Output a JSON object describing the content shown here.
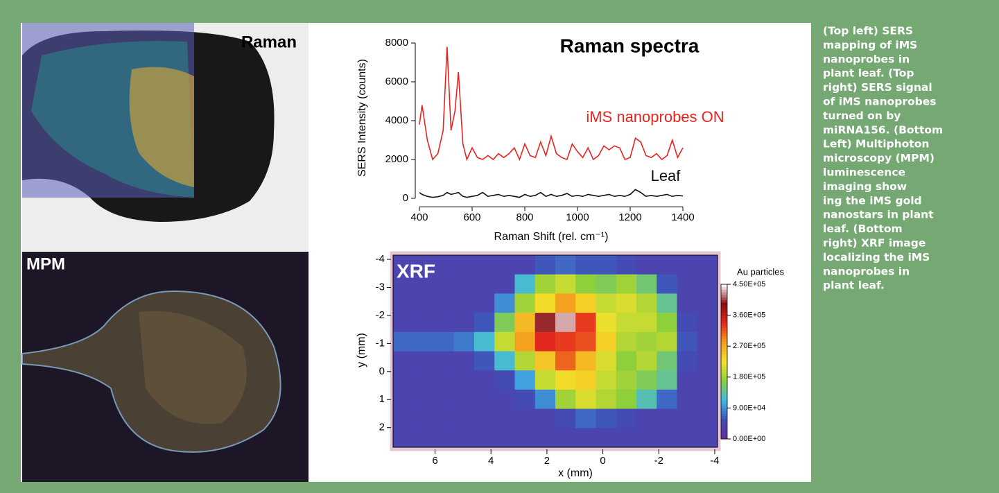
{
  "panels": {
    "raman_map_label": "Raman",
    "mpm_label": "MPM"
  },
  "caption": [
    "(Top left) SERS",
    "mapping of iMS",
    "nanoprobes in",
    "plant leaf. (Top",
    "right) SERS signal",
    "of iMS nanoprobes",
    "turned on by",
    "miRNA156. (Bottom",
    "Left) Multiphoton",
    "microscopy (MPM)",
    "luminescence",
    "imaging show",
    "ing the iMS gold",
    "nanostars in plant",
    "leaf. (Bottom",
    "right) XRF image",
    "localizing the iMS",
    "nanoprobes in",
    "plant leaf."
  ],
  "chart_data": [
    {
      "type": "line",
      "title": "Raman spectra",
      "x_label": "Raman Shift (rel. cm⁻¹)",
      "y_label": "SERS Intensity (counts)",
      "x": [
        400,
        410,
        430,
        450,
        470,
        490,
        505,
        520,
        535,
        548,
        565,
        580,
        600,
        620,
        640,
        660,
        680,
        700,
        720,
        740,
        760,
        780,
        800,
        820,
        840,
        860,
        880,
        900,
        920,
        940,
        960,
        980,
        1000,
        1020,
        1040,
        1060,
        1080,
        1100,
        1120,
        1140,
        1160,
        1180,
        1200,
        1220,
        1240,
        1260,
        1280,
        1300,
        1320,
        1340,
        1360,
        1380,
        1400
      ],
      "series": [
        {
          "name": "iMS nanoprobes ON",
          "color": "#e8231f",
          "values": [
            3800,
            4800,
            3000,
            2000,
            2300,
            3500,
            7800,
            3500,
            4500,
            6500,
            2800,
            2000,
            2600,
            2100,
            2000,
            2200,
            2000,
            2300,
            2100,
            2300,
            2600,
            2000,
            2800,
            2200,
            2100,
            2900,
            2200,
            3200,
            2300,
            2100,
            2000,
            2800,
            2400,
            2100,
            2600,
            2000,
            2200,
            2700,
            2500,
            2700,
            2600,
            2000,
            2100,
            3100,
            2900,
            2200,
            2100,
            2300,
            2000,
            2200,
            3000,
            2100,
            2600
          ]
        },
        {
          "name": "Leaf",
          "color": "#111111",
          "values": [
            300,
            200,
            100,
            50,
            80,
            150,
            300,
            200,
            250,
            300,
            100,
            50,
            100,
            150,
            300,
            100,
            150,
            200,
            100,
            150,
            100,
            50,
            200,
            100,
            150,
            300,
            100,
            200,
            100,
            150,
            250,
            100,
            150,
            100,
            200,
            150,
            100,
            150,
            200,
            100,
            150,
            100,
            200,
            450,
            300,
            100,
            150,
            100,
            150,
            200,
            100,
            150,
            120
          ]
        }
      ],
      "xlim": [
        400,
        1400
      ],
      "xticks": [
        400,
        600,
        800,
        1000,
        1200,
        1400
      ],
      "ylim": [
        -400,
        8400
      ],
      "yticks": [
        0,
        2000,
        4000,
        6000,
        8000
      ]
    },
    {
      "type": "heatmap",
      "title": "XRF",
      "x_label": "x (mm)",
      "y_label": "y (mm)",
      "xlim": [
        7.5,
        -4.1
      ],
      "xticks": [
        6,
        4,
        2,
        0,
        -2,
        -4
      ],
      "ylim": [
        -4.15,
        2.7
      ],
      "yticks": [
        -4,
        -3,
        -2,
        -1,
        0,
        1,
        2
      ],
      "colorbar_label": "Au particles",
      "zlim": [
        0,
        450000
      ],
      "colormap": [
        "#6b2c9c",
        "#3f4fb8",
        "#3fb8e8",
        "#8ccf3c",
        "#f3e22a",
        "#f5a020",
        "#e52a1e",
        "#8a0d12",
        "#ffffff"
      ],
      "zticks": [
        {
          "value": 0,
          "label": "0.00E+00"
        },
        {
          "value": 90000,
          "label": "9.00E+04"
        },
        {
          "value": 180000,
          "label": "1.80E+05"
        },
        {
          "value": 270000,
          "label": "2.70E+05"
        },
        {
          "value": 360000,
          "label": "3.60E+05"
        },
        {
          "value": 450000,
          "label": "4.50E+05"
        }
      ],
      "z": [
        [
          40000,
          40000,
          40000,
          40000,
          40000,
          40000,
          40000,
          60000,
          70000,
          60000,
          60000,
          50000,
          40000,
          40000,
          40000,
          40000
        ],
        [
          40000,
          40000,
          40000,
          40000,
          40000,
          40000,
          120000,
          180000,
          200000,
          170000,
          160000,
          180000,
          150000,
          60000,
          40000,
          40000
        ],
        [
          40000,
          40000,
          40000,
          40000,
          40000,
          90000,
          180000,
          230000,
          280000,
          240000,
          200000,
          210000,
          190000,
          140000,
          40000,
          40000
        ],
        [
          40000,
          40000,
          40000,
          40000,
          60000,
          160000,
          260000,
          400000,
          430000,
          330000,
          220000,
          200000,
          200000,
          170000,
          50000,
          40000
        ],
        [
          70000,
          70000,
          70000,
          80000,
          120000,
          200000,
          280000,
          340000,
          330000,
          320000,
          240000,
          190000,
          180000,
          190000,
          60000,
          40000
        ],
        [
          40000,
          40000,
          40000,
          40000,
          60000,
          120000,
          190000,
          250000,
          310000,
          260000,
          210000,
          170000,
          190000,
          150000,
          50000,
          40000
        ],
        [
          40000,
          40000,
          40000,
          40000,
          40000,
          50000,
          100000,
          200000,
          230000,
          240000,
          200000,
          180000,
          160000,
          140000,
          40000,
          40000
        ],
        [
          40000,
          40000,
          40000,
          40000,
          40000,
          40000,
          50000,
          90000,
          180000,
          210000,
          190000,
          170000,
          130000,
          70000,
          40000,
          40000
        ],
        [
          40000,
          40000,
          40000,
          40000,
          40000,
          40000,
          40000,
          40000,
          50000,
          70000,
          60000,
          50000,
          40000,
          40000,
          40000,
          40000
        ],
        [
          40000,
          40000,
          40000,
          40000,
          40000,
          40000,
          40000,
          40000,
          40000,
          40000,
          40000,
          40000,
          40000,
          40000,
          40000,
          40000
        ]
      ]
    }
  ]
}
